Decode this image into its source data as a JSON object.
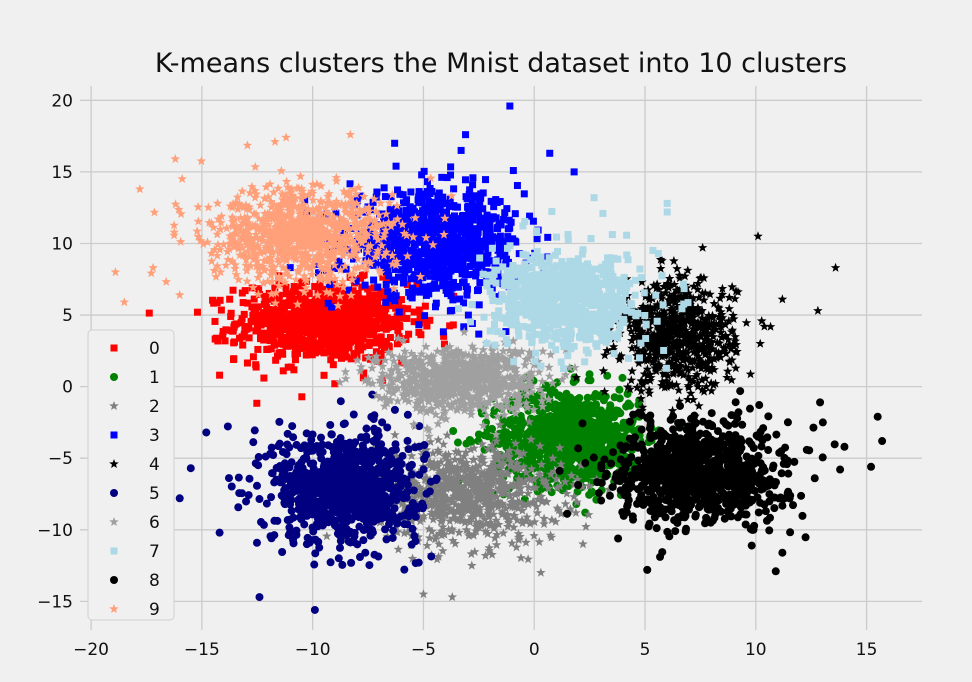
{
  "chart_data": {
    "type": "scatter",
    "title": "K-means clusters the Mnist dataset into 10 clusters",
    "xlabel": "",
    "ylabel": "",
    "xlim": [
      -20.5,
      17.5
    ],
    "ylim": [
      -17,
      21
    ],
    "x_ticks": [
      -20,
      -15,
      -10,
      -5,
      0,
      5,
      10,
      15
    ],
    "y_ticks": [
      -15,
      -10,
      -5,
      0,
      5,
      10,
      15,
      20
    ],
    "x_tick_labels": [
      "−20",
      "−15",
      "−10",
      "−5",
      "0",
      "5",
      "10",
      "15"
    ],
    "y_tick_labels": [
      "−15",
      "−10",
      "−5",
      "0",
      "5",
      "10",
      "15",
      "20"
    ],
    "grid": true,
    "legend_position": "lower-left",
    "series": [
      {
        "name": "0",
        "color": "#ff0000",
        "marker": "square",
        "center": [
          -9.5,
          4.5
        ],
        "spread": [
          2.6,
          1.8
        ],
        "n": 900,
        "outliers": [
          [
            -16.5,
            -0.5
          ],
          [
            -14.2,
            0.8
          ],
          [
            -15.2,
            5.2
          ],
          [
            -12.2,
            0.6
          ],
          [
            -9.0,
            0.2
          ]
        ]
      },
      {
        "name": "1",
        "color": "#008000",
        "marker": "circle",
        "center": [
          1.5,
          -3.5
        ],
        "spread": [
          2.2,
          2.2
        ],
        "n": 900,
        "outliers": [
          [
            2.3,
            -8.8
          ],
          [
            1.9,
            -8.2
          ]
        ]
      },
      {
        "name": "2",
        "color": "#808080",
        "marker": "star",
        "center": [
          -3.0,
          -7.5
        ],
        "spread": [
          2.8,
          2.3
        ],
        "n": 800,
        "outliers": [
          [
            -3.7,
            -14.7
          ],
          [
            -5.0,
            -14.5
          ],
          [
            0.3,
            -13.0
          ],
          [
            2.2,
            -11.0
          ]
        ]
      },
      {
        "name": "3",
        "color": "#0000ff",
        "marker": "square",
        "center": [
          -4.5,
          10.0
        ],
        "spread": [
          2.6,
          2.4
        ],
        "n": 900,
        "outliers": [
          [
            -1.1,
            19.6
          ],
          [
            -3.1,
            17.6
          ],
          [
            0.7,
            16.3
          ],
          [
            -6.3,
            17.0
          ],
          [
            -3.3,
            16.5
          ],
          [
            1.8,
            15.0
          ]
        ]
      },
      {
        "name": "4",
        "color": "#000000",
        "marker": "star",
        "center": [
          6.5,
          3.5
        ],
        "spread": [
          1.7,
          2.6
        ],
        "n": 700,
        "outliers": [
          [
            10.1,
            10.5
          ],
          [
            13.6,
            8.3
          ],
          [
            12.8,
            5.3
          ],
          [
            11.2,
            6.1
          ],
          [
            10.2,
            3.0
          ],
          [
            7.6,
            9.7
          ]
        ]
      },
      {
        "name": "5",
        "color": "#000080",
        "marker": "circle",
        "center": [
          -8.5,
          -7.0
        ],
        "spread": [
          2.2,
          2.6
        ],
        "n": 900,
        "outliers": [
          [
            -15.5,
            -5.7
          ],
          [
            -14.2,
            -10.2
          ],
          [
            -12.4,
            -14.7
          ],
          [
            -9.9,
            -15.6
          ],
          [
            -14.8,
            -3.2
          ],
          [
            -16.0,
            -7.8
          ]
        ]
      },
      {
        "name": "6",
        "color": "#a0a0a0",
        "marker": "star",
        "center": [
          -3.5,
          0.5
        ],
        "spread": [
          2.4,
          1.5
        ],
        "n": 800,
        "outliers": []
      },
      {
        "name": "7",
        "color": "#add8e6",
        "marker": "square",
        "center": [
          1.5,
          6.0
        ],
        "spread": [
          2.2,
          2.2
        ],
        "n": 800,
        "outliers": [
          [
            6.0,
            12.8
          ],
          [
            6.0,
            12.2
          ],
          [
            5.6,
            9.3
          ],
          [
            2.7,
            13.2
          ],
          [
            3.1,
            12.1
          ]
        ]
      },
      {
        "name": "8",
        "color": "#000000",
        "marker": "circle",
        "center": [
          7.5,
          -6.0
        ],
        "spread": [
          2.6,
          2.4
        ],
        "n": 900,
        "outliers": [
          [
            15.7,
            -3.8
          ],
          [
            15.5,
            -2.1
          ],
          [
            15.2,
            -5.6
          ],
          [
            14.0,
            -4.2
          ],
          [
            10.9,
            -12.9
          ],
          [
            5.1,
            -12.8
          ],
          [
            12.9,
            -1.1
          ]
        ]
      },
      {
        "name": "9",
        "color": "#ffa07a",
        "marker": "star",
        "center": [
          -10.5,
          10.5
        ],
        "spread": [
          2.8,
          2.2
        ],
        "n": 900,
        "outliers": [
          [
            -18.9,
            8.0
          ],
          [
            -18.5,
            5.9
          ],
          [
            -17.2,
            8.3
          ],
          [
            -17.8,
            13.8
          ],
          [
            -16.0,
            6.4
          ],
          [
            -11.7,
            17.1
          ],
          [
            -11.2,
            17.4
          ],
          [
            -8.3,
            17.6
          ],
          [
            -16.2,
            15.9
          ]
        ]
      }
    ]
  }
}
